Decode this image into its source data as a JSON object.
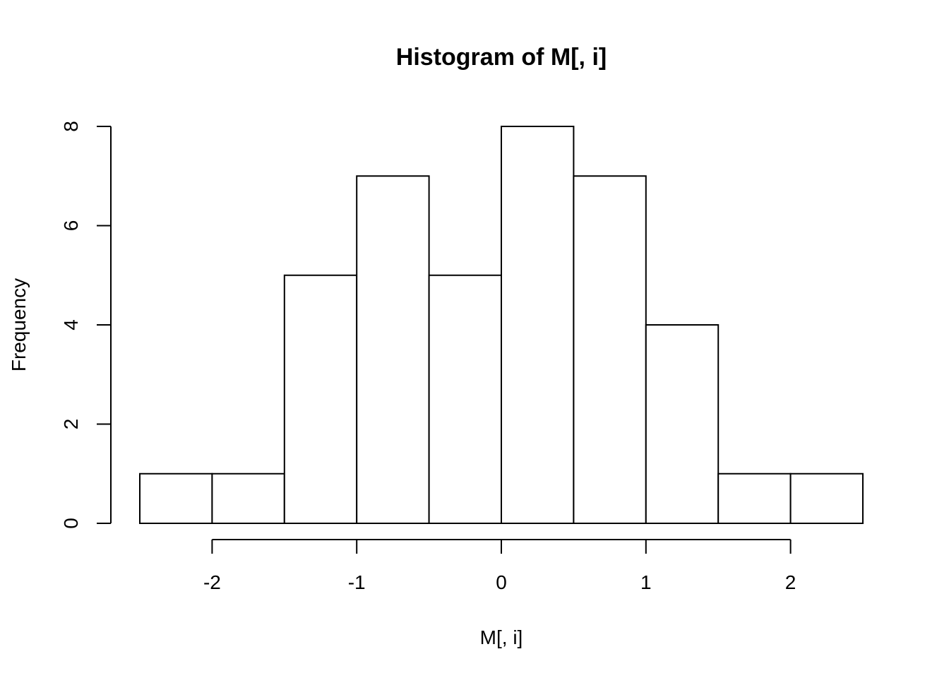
{
  "chart_data": {
    "type": "bar",
    "title": "Histogram of M[, i]",
    "xlabel": "M[, i]",
    "ylabel": "Frequency",
    "bins": [
      {
        "start": -2.5,
        "end": -2.0,
        "count": 1
      },
      {
        "start": -2.0,
        "end": -1.5,
        "count": 1
      },
      {
        "start": -1.5,
        "end": -1.0,
        "count": 5
      },
      {
        "start": -1.0,
        "end": -0.5,
        "count": 7
      },
      {
        "start": -0.5,
        "end": 0.0,
        "count": 5
      },
      {
        "start": 0.0,
        "end": 0.5,
        "count": 8
      },
      {
        "start": 0.5,
        "end": 1.0,
        "count": 7
      },
      {
        "start": 1.0,
        "end": 1.5,
        "count": 4
      },
      {
        "start": 1.5,
        "end": 2.0,
        "count": 1
      },
      {
        "start": 2.0,
        "end": 2.5,
        "count": 1
      }
    ],
    "xticks": [
      -2,
      -1,
      0,
      1,
      2
    ],
    "xtick_labels": [
      "-2",
      "-1",
      "0",
      "1",
      "2"
    ],
    "yticks": [
      0,
      2,
      4,
      6,
      8
    ],
    "ytick_labels": [
      "0",
      "2",
      "4",
      "6",
      "8"
    ],
    "xlim": [
      -2.5,
      2.5
    ],
    "ylim": [
      0,
      8
    ],
    "grid": false,
    "colors": {
      "bar_fill": "#ffffff",
      "bar_stroke": "#000000"
    }
  }
}
